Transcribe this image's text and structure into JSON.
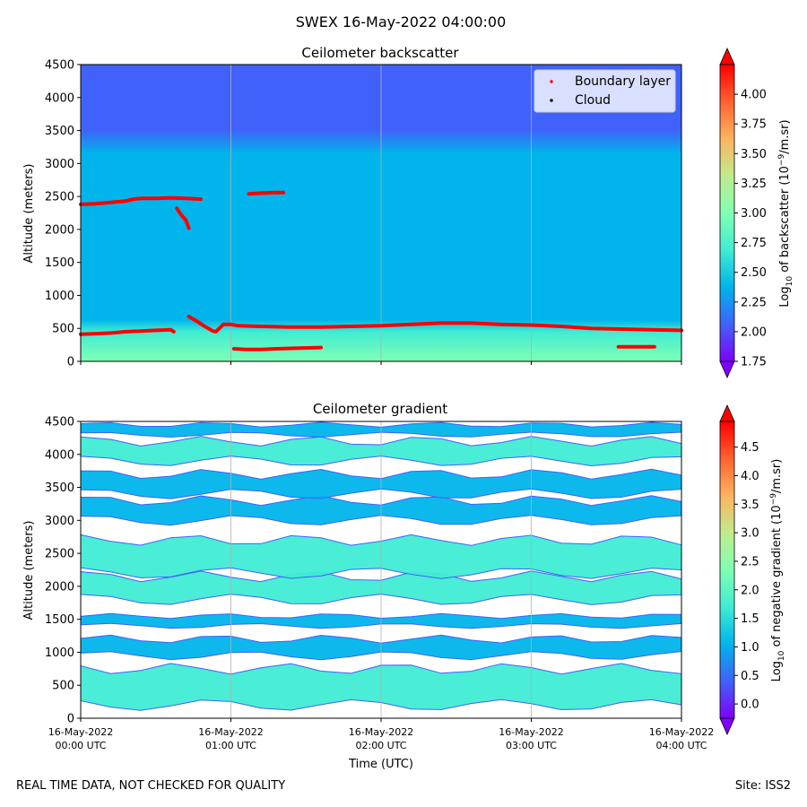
{
  "suptitle": "SWEX 16-May-2022 04:00:00",
  "footer": {
    "left": "REAL TIME DATA, NOT CHECKED FOR QUALITY",
    "right": "Site: ISS2"
  },
  "colors": {
    "rainbow": [
      "#8000ff",
      "#4062fa",
      "#00b5eb",
      "#40ecd4",
      "#80ffb4",
      "#c0eb8d",
      "#ffb360",
      "#ff6230",
      "#ff0000"
    ],
    "boundary": "#ff0000",
    "grid": "#b0b0b0"
  },
  "chart_data": [
    {
      "type": "heatmap",
      "title": "Ceilometer backscatter",
      "ylabel": "Altitude (meters)",
      "xlabel": "",
      "x_range_hours": [
        0,
        4
      ],
      "ylim": [
        0,
        4500
      ],
      "yticks": [
        "0",
        "500",
        "1000",
        "1500",
        "2000",
        "2500",
        "3000",
        "3500",
        "4000",
        "4500"
      ],
      "xtick_hours": [
        0,
        1,
        2,
        3,
        4
      ],
      "grid": "vertical",
      "colorbar": {
        "label_prefix": "Log",
        "label_sub": "10",
        "label_mid": " of backscatter (10",
        "label_sup": "−9",
        "label_suffix": "/m.sr)",
        "range": [
          1.75,
          4.25
        ],
        "ticks": [
          "1.75",
          "2.00",
          "2.25",
          "2.50",
          "2.75",
          "3.00",
          "3.25",
          "3.50",
          "3.75",
          "4.00"
        ]
      },
      "legend": {
        "location": "upper-right",
        "entries": [
          {
            "label": "Boundary layer",
            "color": "#ff0000"
          },
          {
            "label": "Cloud",
            "color": "#000000"
          }
        ]
      },
      "boundary_layer": [
        {
          "name": "upper-layer-1",
          "points": [
            [
              0,
              2380
            ],
            [
              0.1,
              2390
            ],
            [
              0.2,
              2410
            ],
            [
              0.3,
              2430
            ],
            [
              0.35,
              2460
            ],
            [
              0.4,
              2470
            ],
            [
              0.5,
              2470
            ],
            [
              0.6,
              2480
            ],
            [
              0.7,
              2470
            ],
            [
              0.8,
              2460
            ]
          ]
        },
        {
          "name": "upper-layer-2",
          "points": [
            [
              1.12,
              2540
            ],
            [
              1.2,
              2550
            ],
            [
              1.3,
              2560
            ],
            [
              1.35,
              2560
            ]
          ]
        },
        {
          "name": "descending",
          "points": [
            [
              0.64,
              2320
            ],
            [
              0.67,
              2220
            ],
            [
              0.7,
              2140
            ],
            [
              0.72,
              2020
            ]
          ]
        },
        {
          "name": "surface-layer-1",
          "points": [
            [
              0,
              410
            ],
            [
              0.1,
              420
            ],
            [
              0.2,
              430
            ],
            [
              0.3,
              450
            ],
            [
              0.4,
              460
            ],
            [
              0.5,
              470
            ],
            [
              0.6,
              480
            ],
            [
              0.62,
              450
            ]
          ]
        },
        {
          "name": "surface-layer-2",
          "points": [
            [
              0.72,
              680
            ],
            [
              0.78,
              600
            ],
            [
              0.82,
              540
            ],
            [
              0.88,
              460
            ],
            [
              0.9,
              450
            ],
            [
              0.95,
              560
            ],
            [
              1.0,
              560
            ],
            [
              1.05,
              540
            ],
            [
              1.2,
              530
            ],
            [
              1.4,
              520
            ],
            [
              1.6,
              520
            ],
            [
              1.8,
              530
            ],
            [
              2.0,
              540
            ],
            [
              2.2,
              560
            ],
            [
              2.4,
              580
            ],
            [
              2.6,
              580
            ],
            [
              2.8,
              560
            ],
            [
              3.0,
              550
            ],
            [
              3.2,
              530
            ],
            [
              3.4,
              500
            ],
            [
              3.6,
              490
            ],
            [
              3.8,
              480
            ],
            [
              4.0,
              470
            ]
          ]
        },
        {
          "name": "lower-segment",
          "points": [
            [
              1.02,
              190
            ],
            [
              1.1,
              180
            ],
            [
              1.2,
              180
            ],
            [
              1.3,
              190
            ],
            [
              1.45,
              200
            ],
            [
              1.6,
              210
            ]
          ]
        },
        {
          "name": "short-segment",
          "points": [
            [
              3.58,
              220
            ],
            [
              3.65,
              220
            ],
            [
              3.75,
              220
            ],
            [
              3.82,
              220
            ]
          ]
        }
      ]
    },
    {
      "type": "heatmap",
      "title": "Ceilometer gradient",
      "ylabel": "Altitude (meters)",
      "xlabel": "Time (UTC)",
      "x_range_hours": [
        0,
        4
      ],
      "ylim": [
        0,
        4500
      ],
      "yticks": [
        "0",
        "500",
        "1000",
        "1500",
        "2000",
        "2500",
        "3000",
        "3500",
        "4000",
        "4500"
      ],
      "xtick_hours": [
        0,
        1,
        2,
        3,
        4
      ],
      "xtick_labels": [
        [
          "16-May-2022",
          "00:00 UTC"
        ],
        [
          "16-May-2022",
          "01:00 UTC"
        ],
        [
          "16-May-2022",
          "02:00 UTC"
        ],
        [
          "16-May-2022",
          "03:00 UTC"
        ],
        [
          "16-May-2022",
          "04:00 UTC"
        ]
      ],
      "grid": "vertical",
      "colorbar": {
        "label_prefix": "Log",
        "label_sub": "10",
        "label_mid": " of negative gradient (10",
        "label_sup": "−9",
        "label_suffix": "/m.sr)",
        "range": [
          -0.25,
          4.95
        ],
        "ticks": [
          "0.0",
          "0.5",
          "1.0",
          "1.5",
          "2.0",
          "2.5",
          "3.0",
          "3.5",
          "4.0",
          "4.5"
        ]
      },
      "bands": [
        {
          "name": "surface-band",
          "y_low": 200,
          "y_high": 750,
          "level": 1.9
        },
        {
          "name": "band-1100",
          "y_low": 950,
          "y_high": 1200,
          "level": 1.1
        },
        {
          "name": "band-1400",
          "y_low": 1400,
          "y_high": 1550,
          "level": 1.0
        },
        {
          "name": "band-2000",
          "y_low": 1800,
          "y_high": 2150,
          "level": 1.4
        },
        {
          "name": "band-2500",
          "y_low": 2200,
          "y_high": 2700,
          "level": 1.6
        },
        {
          "name": "band-3200",
          "y_low": 3000,
          "y_high": 3300,
          "level": 1.3
        },
        {
          "name": "band-3600",
          "y_low": 3400,
          "y_high": 3700,
          "level": 1.3
        },
        {
          "name": "band-4100",
          "y_low": 3900,
          "y_high": 4200,
          "level": 1.4
        },
        {
          "name": "band-4350",
          "y_low": 4300,
          "y_high": 4450,
          "level": 1.2
        }
      ]
    }
  ]
}
